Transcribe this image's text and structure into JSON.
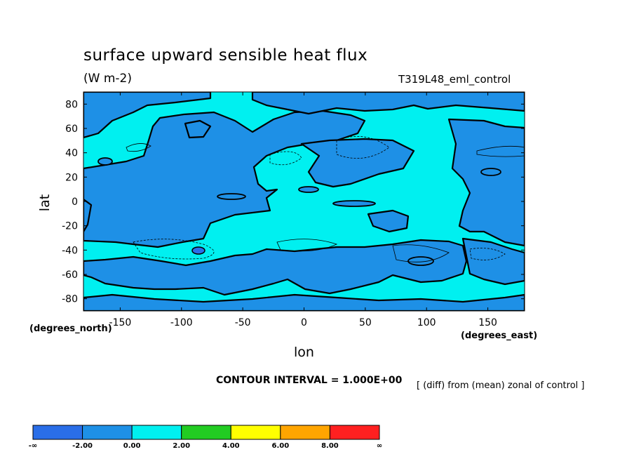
{
  "chart_data": {
    "type": "heatmap",
    "title": "surface upward sensible heat flux",
    "units": "(W m-2)",
    "experiment": "T319L48_eml_control",
    "xlabel": "lon",
    "ylabel": "lat",
    "x_unit_label": "(degrees_east)",
    "y_unit_label": "(degrees_north)",
    "xlim": [
      -180,
      180
    ],
    "ylim": [
      -90,
      90
    ],
    "x_ticks": [
      -150,
      -100,
      -50,
      0,
      50,
      100,
      150
    ],
    "y_ticks": [
      80,
      60,
      40,
      20,
      0,
      -20,
      -40,
      -60,
      -80
    ],
    "contour_interval_text": "CONTOUR INTERVAL = 1.000E+00",
    "note": "[ (diff) from (mean) zonal of control ]",
    "colorbar": {
      "labels": [
        "-∞",
        "-2.00",
        "0.00",
        "2.00",
        "4.00",
        "6.00",
        "8.00",
        "∞"
      ],
      "colors": [
        "#2a6ee8",
        "#1e90e6",
        "#00f0f0",
        "#22cc22",
        "#ffff00",
        "#ffa500",
        "#ff2020"
      ]
    },
    "field_colors": {
      "negative": "#1e90e6",
      "positive": "#00f0f0",
      "strong_negative": "#2a6ee8"
    }
  }
}
